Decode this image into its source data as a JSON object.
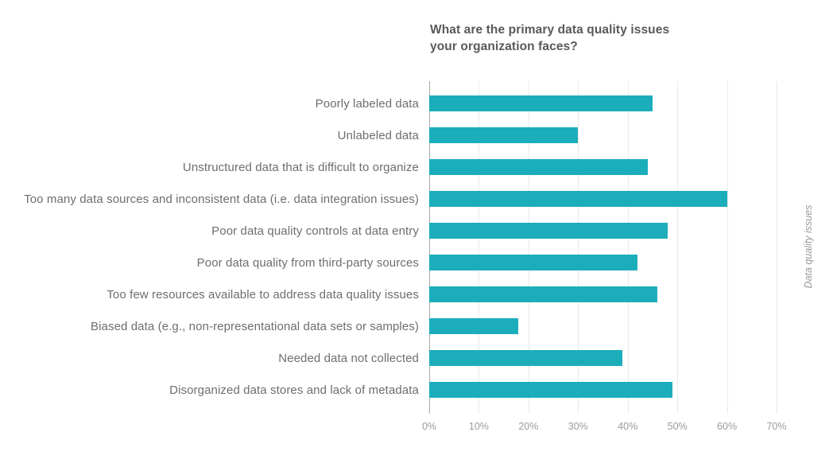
{
  "chart_data": {
    "type": "bar",
    "orientation": "horizontal",
    "title": "What are the primary data quality issues your organization faces?",
    "title_lines": [
      "What are the primary data quality issues",
      "your organization faces?"
    ],
    "categories": [
      "Poorly labeled data",
      "Unlabeled data",
      "Unstructured data that is difficult to organize",
      "Too many data sources and inconsistent data (i.e. data integration issues)",
      "Poor data quality controls at data entry",
      "Poor data quality from third-party sources",
      "Too few resources available to address data quality issues",
      "Biased data (e.g., non-representational data sets or samples)",
      "Needed data not collected",
      "Disorganized data stores and lack of metadata"
    ],
    "values": [
      45,
      30,
      44,
      60,
      48,
      42,
      46,
      18,
      39,
      49
    ],
    "unit": "%",
    "xlim": [
      0,
      70
    ],
    "xtick_labels": [
      "0%",
      "10%",
      "20%",
      "30%",
      "40%",
      "50%",
      "60%",
      "70%"
    ],
    "right_axis_label": "Data quality issues",
    "grid": true,
    "legend": "none",
    "bar_color": "#1cadba",
    "gridline_color": "#e9e9e9",
    "zero_line_color": "#a9aaac",
    "title_color": "#58595b",
    "label_color": "#6d6e71",
    "tick_color": "#9b9b9d"
  }
}
